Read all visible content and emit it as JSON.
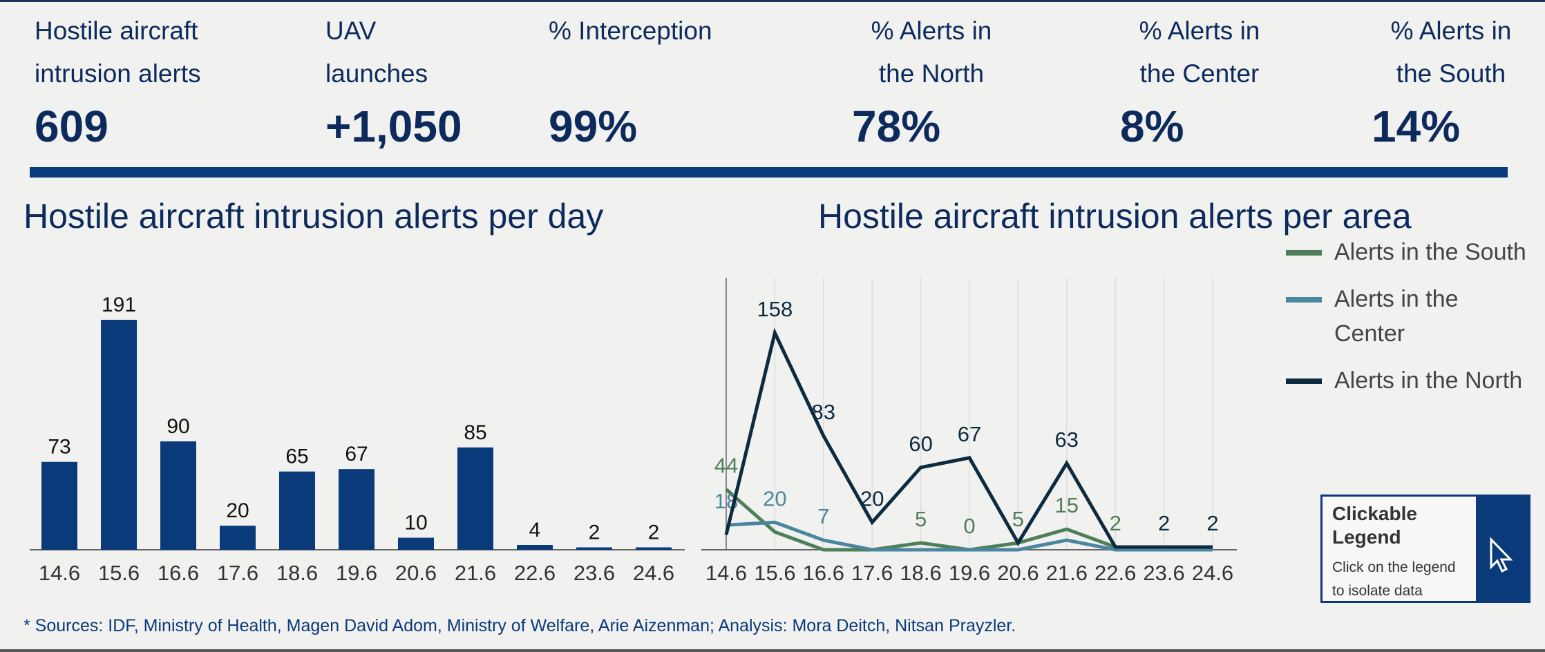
{
  "kpis": [
    {
      "label": "Hostile aircraft intrusion alerts",
      "value": "609"
    },
    {
      "label": "UAV launches",
      "value": "+1,050"
    },
    {
      "label": "% Interception",
      "value": "99%"
    },
    {
      "label": "% Alerts in the North",
      "value": "78%"
    },
    {
      "label": "% Alerts in the Center",
      "value": "8%"
    },
    {
      "label": "% Alerts in the South",
      "value": "14%"
    }
  ],
  "chart_data": [
    {
      "type": "bar",
      "title": "Hostile aircraft intrusion alerts per day",
      "categories": [
        "14.6",
        "15.6",
        "16.6",
        "17.6",
        "18.6",
        "19.6",
        "20.6",
        "21.6",
        "22.6",
        "23.6",
        "24.6"
      ],
      "values": [
        73,
        191,
        90,
        20,
        65,
        67,
        10,
        85,
        4,
        2,
        2
      ],
      "color": "#0b3a7a"
    },
    {
      "type": "line",
      "title": "Hostile aircraft intrusion alerts per area",
      "categories": [
        "14.6",
        "15.6",
        "16.6",
        "17.6",
        "18.6",
        "19.6",
        "20.6",
        "21.6",
        "22.6",
        "23.6",
        "24.6"
      ],
      "grid": true,
      "legend": "right",
      "series": [
        {
          "name": "Alerts in the South",
          "color": "#4f7f58",
          "values": [
            44,
            13,
            0,
            0,
            5,
            0,
            5,
            15,
            2,
            0,
            0
          ],
          "value_labels": [
            "44",
            null,
            null,
            null,
            "5",
            "0",
            "5",
            "15",
            "2",
            null,
            null
          ]
        },
        {
          "name": "Alerts in the Center",
          "color": "#4a86a0",
          "values": [
            18,
            20,
            7,
            0,
            0,
            0,
            0,
            7,
            0,
            0,
            0
          ],
          "value_labels": [
            "18",
            "20",
            "7",
            null,
            null,
            null,
            null,
            null,
            null,
            null,
            null
          ]
        },
        {
          "name": "Alerts in the North",
          "color": "#0d2b3e",
          "values": [
            11,
            158,
            83,
            20,
            60,
            67,
            5,
            63,
            2,
            2,
            2
          ],
          "value_labels": [
            null,
            "158",
            "83",
            "20",
            "60",
            "67",
            null,
            "63",
            null,
            "2",
            "2"
          ]
        }
      ]
    }
  ],
  "legend_hint": {
    "title": "Clickable Legend",
    "text": "Click on the legend to isolate data"
  },
  "footnote": "* Sources: IDF, Ministry of Health, Magen David Adom, Ministry of Welfare, Arie Aizenman; Analysis: Mora Deitch, Nitsan Prayzler."
}
